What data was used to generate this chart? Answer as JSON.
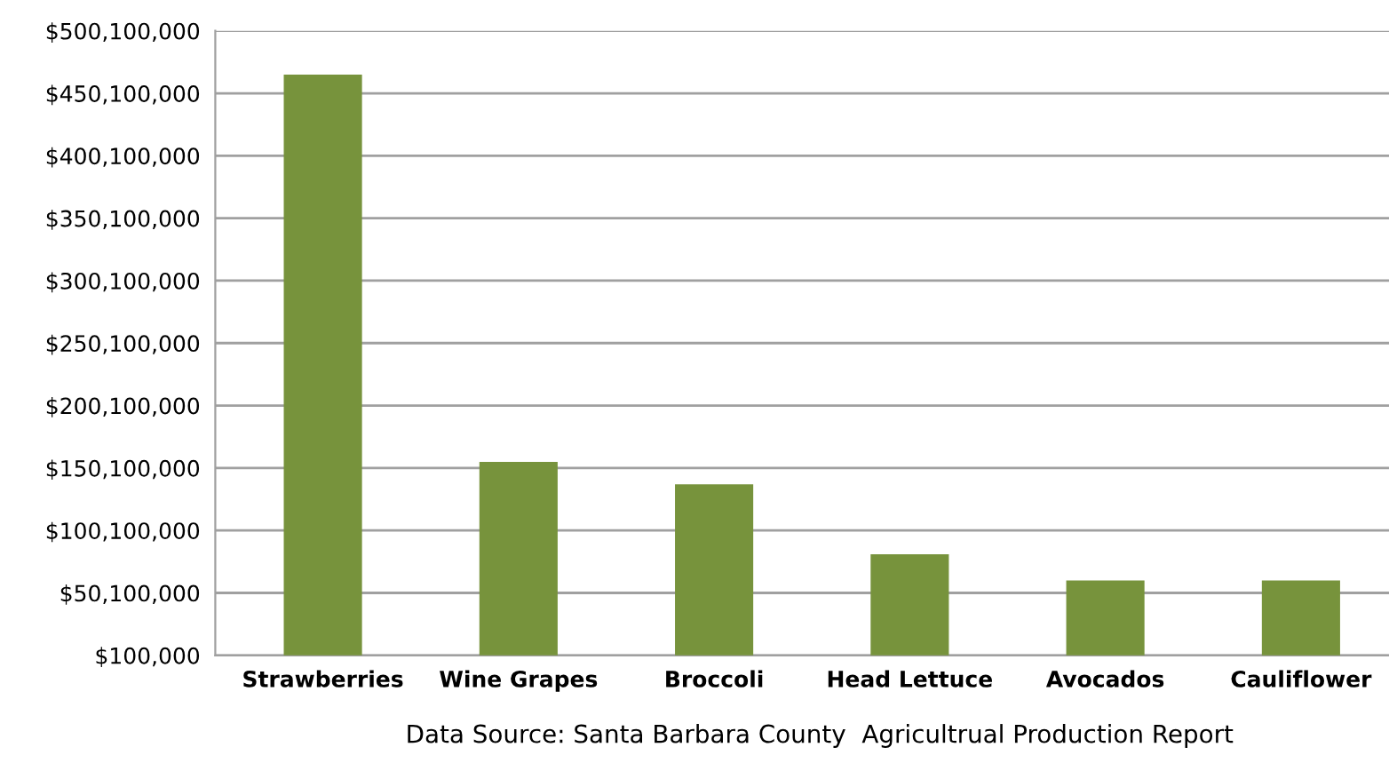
{
  "chart_data": {
    "type": "bar",
    "categories": [
      "Strawberries",
      "Wine Grapes",
      "Broccoli",
      "Head Lettuce",
      "Avocados",
      "Cauliflower"
    ],
    "values": [
      465000000,
      155000000,
      137000000,
      81000000,
      60000000,
      60000000
    ],
    "color": "#77933c",
    "ylim": [
      100000,
      500100000
    ],
    "yticks": [
      {
        "value": 100000,
        "label": "$100,000"
      },
      {
        "value": 50100000,
        "label": "$50,100,000"
      },
      {
        "value": 100100000,
        "label": "$100,100,000"
      },
      {
        "value": 150100000,
        "label": "$150,100,000"
      },
      {
        "value": 200100000,
        "label": "$200,100,000"
      },
      {
        "value": 250100000,
        "label": "$250,100,000"
      },
      {
        "value": 300100000,
        "label": "$300,100,000"
      },
      {
        "value": 350100000,
        "label": "$350,100,000"
      },
      {
        "value": 400100000,
        "label": "$400,100,000"
      },
      {
        "value": 450100000,
        "label": "$450,100,000"
      },
      {
        "value": 500100000,
        "label": "$500,100,000"
      }
    ],
    "grid": "y",
    "annotations": [
      "Data Source: Santa Barbara County  Agricultrual Production Report"
    ]
  }
}
